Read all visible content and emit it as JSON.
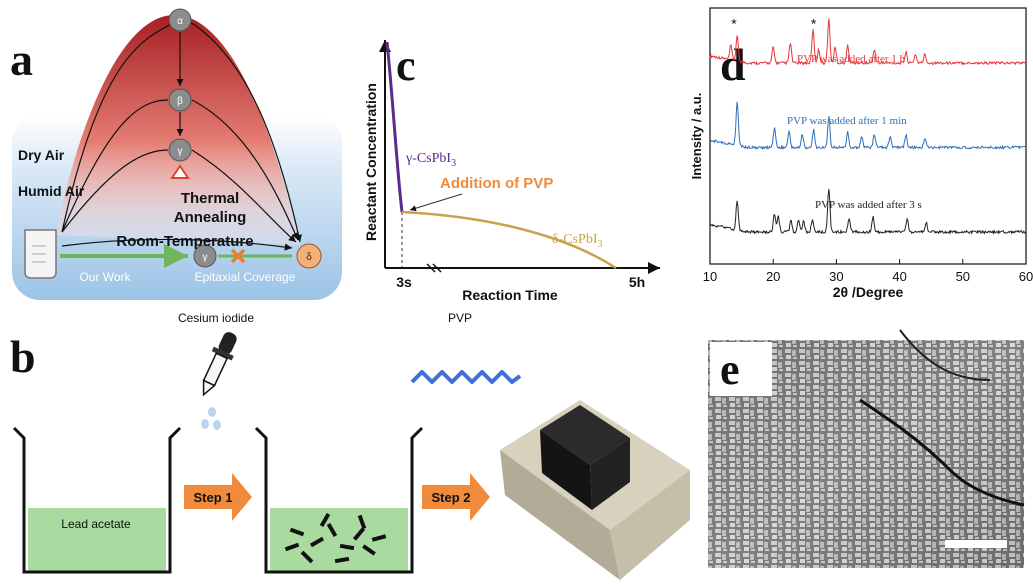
{
  "panels": {
    "a": {
      "letter": "a",
      "dry_air": "Dry Air",
      "humid_air": "Humid Air",
      "phases": [
        "α",
        "β",
        "γ",
        "δ"
      ],
      "room_phase": "γ",
      "thermal_annealing": [
        "Thermal",
        "Annealing"
      ],
      "room_temperature": "Room-Temperature",
      "our_work": "Our Work",
      "epitaxial_coverage": "Epitaxial Coverage",
      "colors": {
        "heat_top": "#b5282a",
        "heat_bottom": "#fde7df",
        "humid_blue": "#9fc4e6",
        "arrow_green": "#6fb55e",
        "cross_orange": "#ee7d2a"
      }
    },
    "b": {
      "letter": "b",
      "cesium_iodide": "Cesium iodide",
      "pvp": "PVP",
      "lead_acetate": "Lead acetate",
      "step1": "Step 1",
      "step2": "Step 2",
      "colors": {
        "solution": "#a9dba0",
        "step_arrow": "#f08a3c",
        "pvp_chain": "#3f6fd8",
        "droplet": "#b8d4ee"
      }
    },
    "c": {
      "letter": "c",
      "ylabel": "Reactant Concentration",
      "xlabel": "Reaction Time",
      "xticks": [
        "3s",
        "5h"
      ],
      "gamma_label": "γ-CsPbI",
      "gamma_sub": "3",
      "delta_label": "δ-CsPbI",
      "delta_sub": "3",
      "addition_label": "Addition of PVP",
      "colors": {
        "gamma": "#5b2a8c",
        "delta": "#c9a24a",
        "addition": "#f08a3c"
      }
    },
    "d": {
      "letter": "d",
      "ylabel": "Intensity / a.u.",
      "xlabel": "2θ /Degree",
      "star": "*",
      "legend": [
        "PVP was added after 1 h",
        "PVP was added after 1 min",
        "PVP was added after 3 s"
      ],
      "legend_colors": [
        "#e8343a",
        "#2f6fb8",
        "#222222"
      ]
    },
    "e": {
      "letter": "e"
    }
  },
  "chart_data": {
    "type": "line",
    "title": "",
    "xlabel": "2θ /Degree",
    "ylabel": "Intensity / a.u.",
    "xlim": [
      10,
      60
    ],
    "x_ticks": [
      10,
      20,
      30,
      40,
      50,
      60
    ],
    "y_ticks_shown": false,
    "grid": false,
    "legend_placement": "inline-right",
    "stars_at_x": [
      13.8,
      26.4
    ],
    "series": [
      {
        "name": "PVP was added after 1 h",
        "color": "#e8343a",
        "baseline": 0.78,
        "peaks": [
          [
            13.3,
            0.32
          ],
          [
            14.3,
            0.55
          ],
          [
            20.0,
            0.35
          ],
          [
            22.7,
            0.45
          ],
          [
            26.3,
            0.75
          ],
          [
            27.2,
            0.3
          ],
          [
            28.8,
            1.0
          ],
          [
            29.8,
            0.35
          ],
          [
            31.8,
            0.4
          ],
          [
            36.0,
            0.3
          ],
          [
            41.0,
            0.25
          ],
          [
            42.5,
            0.2
          ],
          [
            44.0,
            0.2
          ]
        ]
      },
      {
        "name": "PVP was added after 1 min",
        "color": "#2f6fb8",
        "baseline": 0.45,
        "peaks": [
          [
            14.3,
            1.0
          ],
          [
            20.2,
            0.45
          ],
          [
            22.5,
            0.35
          ],
          [
            24.6,
            0.3
          ],
          [
            26.4,
            0.4
          ],
          [
            28.8,
            0.7
          ],
          [
            31.8,
            0.35
          ],
          [
            34.0,
            0.25
          ],
          [
            36.0,
            0.3
          ],
          [
            38.5,
            0.25
          ],
          [
            41.0,
            0.28
          ],
          [
            44.0,
            0.22
          ]
        ]
      },
      {
        "name": "PVP was added after 3 s",
        "color": "#222222",
        "baseline": 0.12,
        "peaks": [
          [
            14.3,
            0.65
          ],
          [
            20.2,
            0.42
          ],
          [
            20.8,
            0.35
          ],
          [
            22.8,
            0.25
          ],
          [
            24.0,
            0.25
          ],
          [
            24.8,
            0.25
          ],
          [
            26.2,
            0.28
          ],
          [
            28.8,
            1.0
          ],
          [
            32.0,
            0.3
          ],
          [
            35.8,
            0.35
          ],
          [
            41.2,
            0.3
          ],
          [
            44.2,
            0.22
          ]
        ]
      }
    ]
  }
}
